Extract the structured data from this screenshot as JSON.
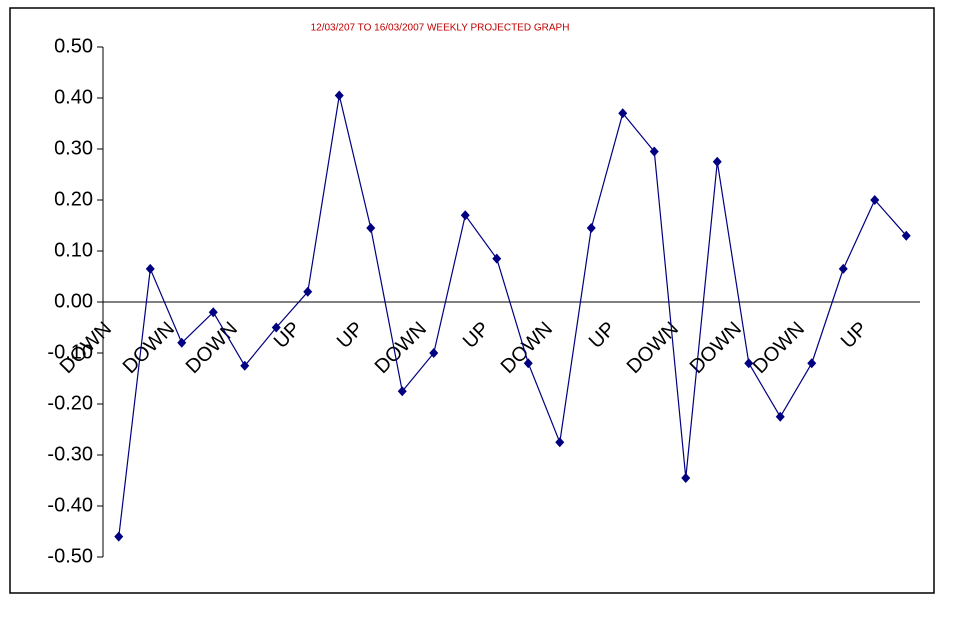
{
  "chart_data": {
    "type": "line",
    "title": "12/03/207 TO 16/03/2007 WEEKLY PROJECTED GRAPH",
    "title_color": "#c00000",
    "categories": [
      "DOWN",
      null,
      "DOWN",
      null,
      "DOWN",
      null,
      "UP",
      null,
      "UP",
      null,
      "DOWN",
      null,
      "UP",
      null,
      "DOWN",
      null,
      "UP",
      null,
      "DOWN",
      null,
      "DOWN",
      null,
      "DOWN",
      null,
      "UP",
      null
    ],
    "series": [
      {
        "color": "#000080",
        "values": [
          -0.46,
          0.065,
          -0.08,
          -0.02,
          -0.125,
          -0.05,
          0.02,
          0.405,
          0.145,
          -0.175,
          -0.1,
          0.17,
          0.085,
          -0.12,
          -0.275,
          0.145,
          0.37,
          0.295,
          -0.345,
          0.275,
          -0.12,
          -0.225,
          -0.12,
          0.065,
          0.2,
          0.13
        ]
      }
    ],
    "ylim": [
      -0.5,
      0.5
    ],
    "yticks": [
      {
        "value": 0.5,
        "label": "0.50"
      },
      {
        "value": 0.4,
        "label": "0.40"
      },
      {
        "value": 0.3,
        "label": "0.30"
      },
      {
        "value": 0.2,
        "label": "0.20"
      },
      {
        "value": 0.1,
        "label": "0.10"
      },
      {
        "value": 0,
        "label": "0.00"
      },
      {
        "value": -0.1,
        "label": "-0.10"
      },
      {
        "value": -0.2,
        "label": "-0.20"
      },
      {
        "value": -0.3,
        "label": "-0.30"
      },
      {
        "value": -0.4,
        "label": "-0.40"
      },
      {
        "value": -0.5,
        "label": "-0.50"
      }
    ],
    "grid": false
  }
}
